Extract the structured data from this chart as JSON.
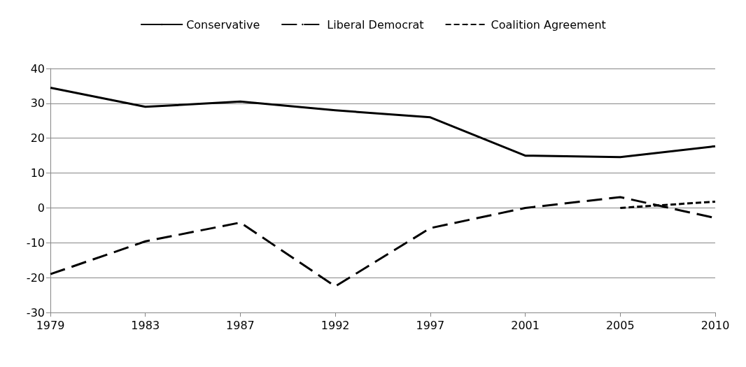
{
  "chart_data": {
    "type": "line",
    "categories": [
      "1979",
      "1983",
      "1987",
      "1992",
      "1997",
      "2001",
      "2005",
      "2010"
    ],
    "series": [
      {
        "name": "Conservative",
        "color": "#000000",
        "line_style": "solid",
        "values": [
          34.5,
          29,
          30.5,
          28,
          26,
          15,
          14.6,
          17.7
        ]
      },
      {
        "name": "Liberal Democrat",
        "color": "#000000",
        "line_style": "dashed",
        "values": [
          -19,
          -9.6,
          -4.2,
          -22.5,
          -5.8,
          0,
          3.1,
          -2.9
        ]
      },
      {
        "name": "Coalition Agreement",
        "color": "#000000",
        "line_style": "dotted",
        "values": [
          null,
          null,
          null,
          null,
          null,
          null,
          0,
          1.8
        ]
      }
    ],
    "ylim": [
      -30,
      40
    ],
    "yticks": [
      -30,
      -20,
      -10,
      0,
      10,
      20,
      30,
      40
    ],
    "grid": "y",
    "legend": "top",
    "marker": "none"
  }
}
